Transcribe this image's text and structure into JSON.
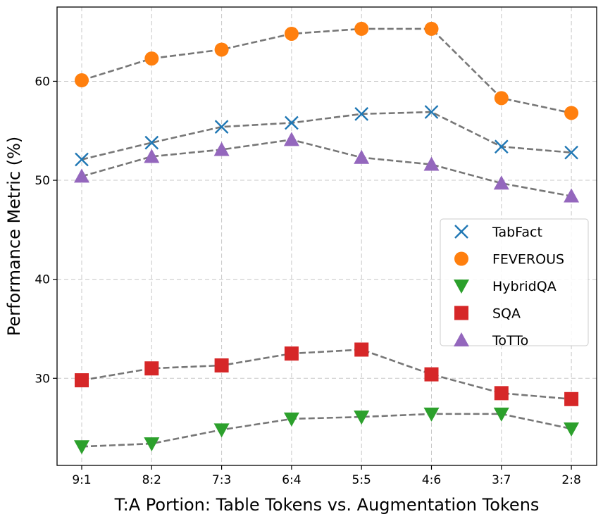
{
  "chart_data": {
    "type": "line",
    "title": "",
    "xlabel": "T:A Portion: Table Tokens vs. Augmentation Tokens",
    "ylabel": "Performance Metric (%)",
    "categories": [
      "9:1",
      "8:2",
      "7:3",
      "6:4",
      "5:5",
      "4:6",
      "3:7",
      "2:8"
    ],
    "ylim": [
      21.2,
      67.5
    ],
    "yticks": [
      30,
      40,
      50,
      60
    ],
    "grid": true,
    "legend_position": "center-right",
    "line_color": "#555555",
    "series": [
      {
        "name": "TabFact",
        "marker": "x",
        "color": "#1f77b4",
        "values": [
          52.1,
          53.8,
          55.4,
          55.8,
          56.7,
          56.9,
          53.4,
          52.8
        ]
      },
      {
        "name": "FEVEROUS",
        "marker": "circle",
        "color": "#ff7f0e",
        "values": [
          60.1,
          62.3,
          63.2,
          64.8,
          65.3,
          65.3,
          58.3,
          56.8
        ]
      },
      {
        "name": "HybridQA",
        "marker": "triangle-down",
        "color": "#2ca02c",
        "values": [
          23.1,
          23.4,
          24.8,
          25.9,
          26.1,
          26.4,
          26.4,
          24.9
        ]
      },
      {
        "name": "SQA",
        "marker": "square",
        "color": "#d62728",
        "values": [
          29.8,
          31.0,
          31.3,
          32.5,
          32.9,
          30.4,
          28.5,
          27.9
        ]
      },
      {
        "name": "ToTTo",
        "marker": "triangle-up",
        "color": "#9467bd",
        "values": [
          50.4,
          52.4,
          53.1,
          54.1,
          52.3,
          51.6,
          49.7,
          48.4
        ]
      }
    ]
  }
}
